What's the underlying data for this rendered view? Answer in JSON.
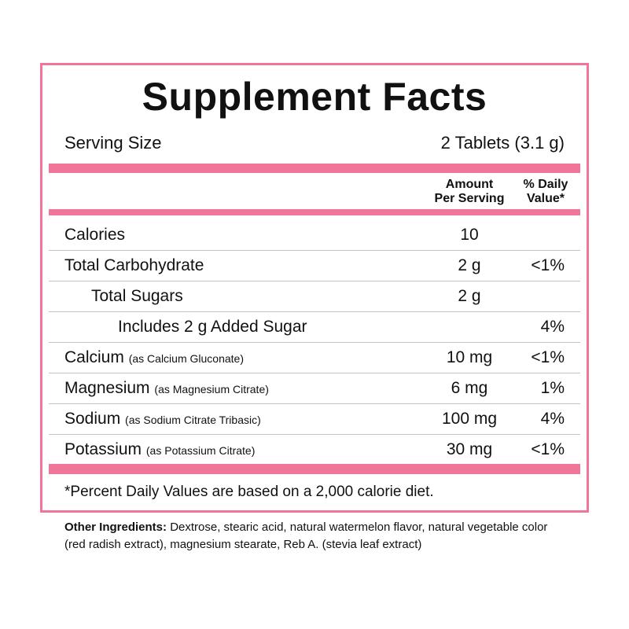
{
  "title": "Supplement Facts",
  "serving": {
    "label": "Serving Size",
    "value": "2 Tablets (3.1 g)"
  },
  "headers": {
    "amount_line1": "Amount",
    "amount_line2": "Per Serving",
    "dv_line1": "% Daily",
    "dv_line2": "Value*"
  },
  "rows": [
    {
      "name": "Calories",
      "note": "",
      "amount": "10",
      "dv": ""
    },
    {
      "name": "Total Carbohydrate",
      "note": "",
      "amount": "2 g",
      "dv": "<1%"
    },
    {
      "name": "Total Sugars",
      "note": "",
      "amount": "2 g",
      "dv": ""
    },
    {
      "name": "Includes 2 g Added Sugar",
      "note": "",
      "amount": "",
      "dv": "4%"
    },
    {
      "name": "Calcium",
      "note": "(as Calcium Gluconate)",
      "amount": "10 mg",
      "dv": "<1%"
    },
    {
      "name": "Magnesium",
      "note": "(as Magnesium Citrate)",
      "amount": "6 mg",
      "dv": "1%"
    },
    {
      "name": "Sodium",
      "note": "(as Sodium Citrate Tribasic)",
      "amount": "100 mg",
      "dv": "4%"
    },
    {
      "name": "Potassium",
      "note": "(as Potassium Citrate)",
      "amount": "30 mg",
      "dv": "<1%"
    }
  ],
  "footnote": "*Percent Daily Values are based on a 2,000 calorie diet.",
  "other_ingredients": {
    "label": "Other Ingredients:",
    "text": "Dextrose, stearic acid, natural watermelon flavor, natural vegetable color (red radish extract), magnesium stearate, Reb A. (stevia leaf extract)"
  },
  "colors": {
    "accent": "#f07599",
    "divider": "#c4c4c4"
  }
}
